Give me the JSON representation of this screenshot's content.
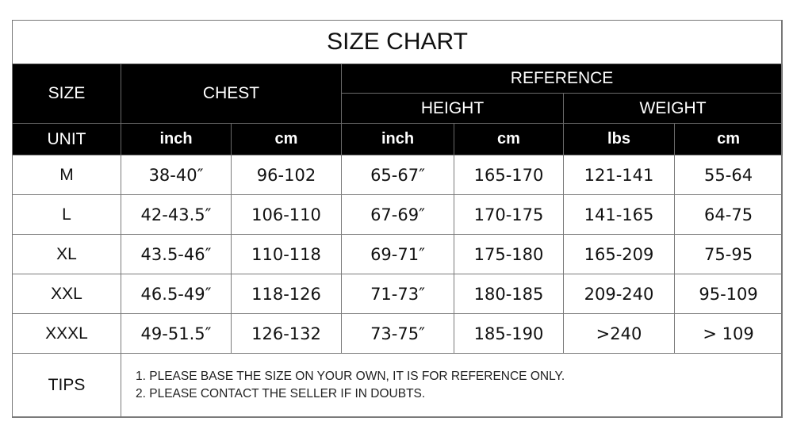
{
  "title": "SIZE CHART",
  "headers": {
    "size": "SIZE",
    "chest": "CHEST",
    "reference": "REFERENCE",
    "height": "HEIGHT",
    "weight": "WEIGHT",
    "unit": "UNIT",
    "units": [
      "inch",
      "cm",
      "inch",
      "cm",
      "lbs",
      "cm"
    ]
  },
  "rows": [
    [
      "M",
      "38-40″",
      "96-102",
      "65-67″",
      "165-170",
      "121-141",
      "55-64"
    ],
    [
      "L",
      "42-43.5″",
      "106-110",
      "67-69″",
      "170-175",
      "141-165",
      "64-75"
    ],
    [
      "XL",
      "43.5-46″",
      "110-118",
      "69-71″",
      "175-180",
      "165-209",
      "75-95"
    ],
    [
      "XXL",
      "46.5-49″",
      "118-126",
      "71-73″",
      "180-185",
      "209-240",
      "95-109"
    ],
    [
      "XXXL",
      "49-51.5″",
      "126-132",
      "73-75″",
      "185-190",
      ">240",
      "> 109"
    ]
  ],
  "tips": {
    "label": "TIPS",
    "lines": [
      "1. PLEASE BASE THE SIZE ON YOUR OWN, IT IS FOR REFERENCE ONLY.",
      "2. PLEASE CONTACT THE SELLER IF IN DOUBTS."
    ]
  }
}
